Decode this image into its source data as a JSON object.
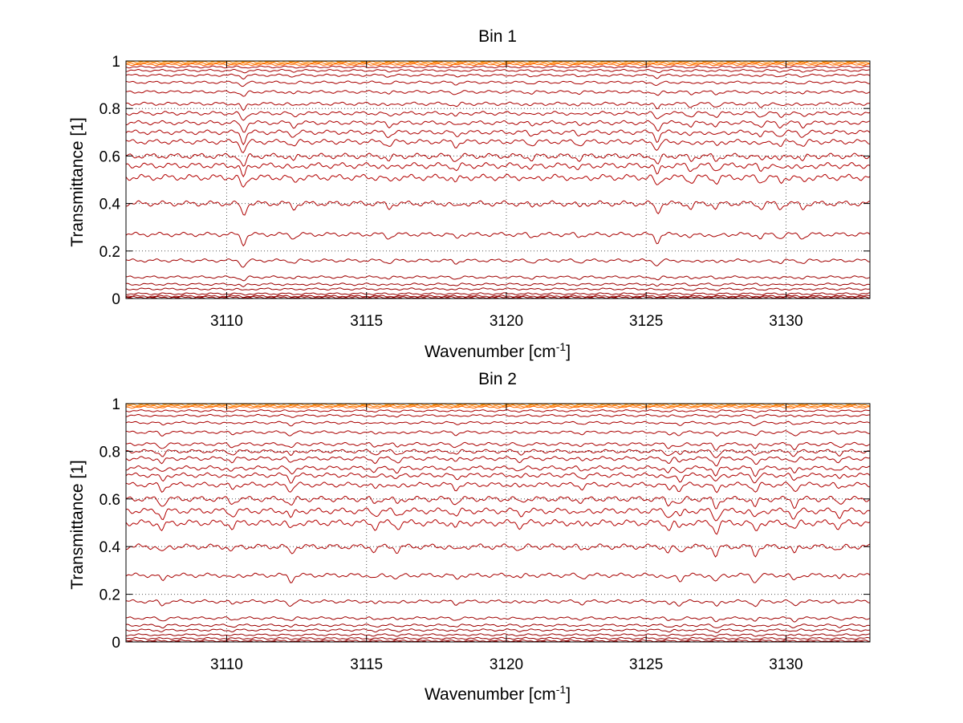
{
  "chart_data": [
    {
      "type": "line",
      "title": "Bin 1",
      "xlabel_main": "Wavenumber [cm",
      "xlabel_sup": "-1",
      "xlabel_tail": "]",
      "ylabel": "Transmittance [1]",
      "xlim": [
        3106.4,
        3133.0
      ],
      "ylim": [
        0,
        1
      ],
      "xticks": [
        3110,
        3115,
        3120,
        3125,
        3130
      ],
      "xtick_labels": [
        "3110",
        "3115",
        "3120",
        "3125",
        "3130"
      ],
      "yticks": [
        0,
        0.2,
        0.4,
        0.6,
        0.8,
        1
      ],
      "ytick_labels": [
        "0",
        "0.2",
        "0.4",
        "0.6",
        "0.8",
        "1"
      ],
      "grid": true,
      "grid_style": "dotted",
      "series_levels": [
        1.0,
        0.995,
        0.99,
        0.985,
        0.975,
        0.96,
        0.94,
        0.91,
        0.87,
        0.82,
        0.78,
        0.74,
        0.7,
        0.66,
        0.6,
        0.56,
        0.51,
        0.4,
        0.27,
        0.16,
        0.09,
        0.06,
        0.04,
        0.02,
        0.01,
        0.005,
        0.0
      ],
      "dip_centers": [
        3110.6,
        3112.4,
        3115.8,
        3118.2,
        3120.9,
        3122.6,
        3125.4,
        3126.6,
        3127.5,
        3129.1,
        3129.8,
        3130.6
      ],
      "dip_depths": [
        0.05,
        0.02,
        0.02,
        0.02,
        0.015,
        0.015,
        0.04,
        0.02,
        0.02,
        0.02,
        0.02,
        0.02
      ],
      "colors": {
        "low": "#8b0000",
        "mid": "#c00000",
        "high": "#ff6600",
        "top": "#ff9900"
      }
    },
    {
      "type": "line",
      "title": "Bin 2",
      "xlabel_main": "Wavenumber [cm",
      "xlabel_sup": "-1",
      "xlabel_tail": "]",
      "ylabel": "Transmittance [1]",
      "xlim": [
        3106.4,
        3133.0
      ],
      "ylim": [
        0,
        1
      ],
      "xticks": [
        3110,
        3115,
        3120,
        3125,
        3130
      ],
      "xtick_labels": [
        "3110",
        "3115",
        "3120",
        "3125",
        "3130"
      ],
      "yticks": [
        0,
        0.2,
        0.4,
        0.6,
        0.8,
        1
      ],
      "ytick_labels": [
        "0",
        "0.2",
        "0.4",
        "0.6",
        "0.8",
        "1"
      ],
      "grid": true,
      "grid_style": "dotted",
      "series_levels": [
        1.0,
        0.995,
        0.99,
        0.985,
        0.97,
        0.95,
        0.92,
        0.88,
        0.83,
        0.8,
        0.77,
        0.73,
        0.7,
        0.66,
        0.6,
        0.55,
        0.5,
        0.4,
        0.28,
        0.17,
        0.1,
        0.07,
        0.05,
        0.03,
        0.015,
        0.005,
        0.0
      ],
      "dip_centers": [
        3107.7,
        3110.2,
        3112.3,
        3115.3,
        3116.1,
        3118.2,
        3120.5,
        3122.7,
        3125.8,
        3126.2,
        3127.5,
        3128.9,
        3130.3,
        3131.9
      ],
      "dip_depths": [
        0.03,
        0.02,
        0.03,
        0.02,
        0.02,
        0.02,
        0.015,
        0.015,
        0.025,
        0.025,
        0.04,
        0.035,
        0.03,
        0.02
      ],
      "colors": {
        "low": "#8b0000",
        "mid": "#c00000",
        "high": "#ff6600",
        "top": "#ff9900"
      }
    }
  ]
}
